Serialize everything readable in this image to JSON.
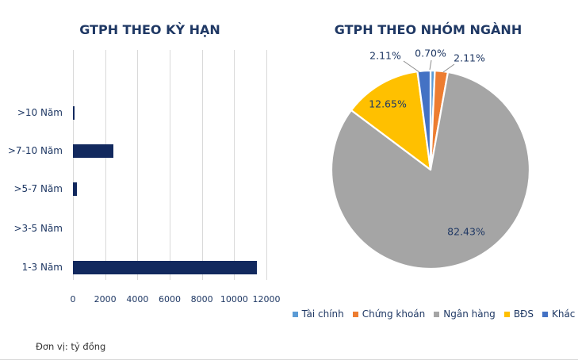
{
  "page": {
    "footer_note": "Đơn vị: tỷ đồng",
    "background": "#FFFFFF"
  },
  "colors": {
    "text_navy": "#1F3864",
    "bar_navy": "#12295E",
    "gridline": "#D9D9D9",
    "leader_line": "#8C8C8C",
    "footer_text": "#333333"
  },
  "chart_data": [
    {
      "type": "bar",
      "orientation": "horizontal",
      "title": "GTPH THEO KỲ HẠN",
      "categories": [
        ">10 Năm",
        ">7-10 Năm",
        ">5-7 Năm",
        ">3-5 Năm",
        "1-3 Năm"
      ],
      "values": [
        70,
        2500,
        250,
        0,
        11400
      ],
      "xlim": [
        0,
        12000
      ],
      "x_ticks": [
        "0",
        "2000",
        "4000",
        "6000",
        "8000",
        "10000",
        "12000"
      ],
      "grid": true,
      "bar_color": "#12295E",
      "unit": "tỷ đồng"
    },
    {
      "type": "pie",
      "title": "GTPH THEO NHÓM NGÀNH",
      "start_angle_deg": 0,
      "direction": "clockwise",
      "legend_position": "bottom",
      "slices": [
        {
          "label": "Tài chính",
          "value": 0.7,
          "display": "0.70%",
          "color": "#5B9BD5",
          "label_mode": "callout"
        },
        {
          "label": "Chứng khoán",
          "value": 2.11,
          "display": "2.11%",
          "color": "#ED7D31",
          "label_mode": "callout"
        },
        {
          "label": "Ngân hàng",
          "value": 82.43,
          "display": "82.43%",
          "color": "#A5A5A5",
          "label_mode": "inside"
        },
        {
          "label": "BĐS",
          "value": 12.65,
          "display": "12.65%",
          "color": "#FFC000",
          "label_mode": "inside"
        },
        {
          "label": "Khác",
          "value": 2.11,
          "display": "2.11%",
          "color": "#4472C4",
          "label_mode": "callout"
        }
      ]
    }
  ]
}
